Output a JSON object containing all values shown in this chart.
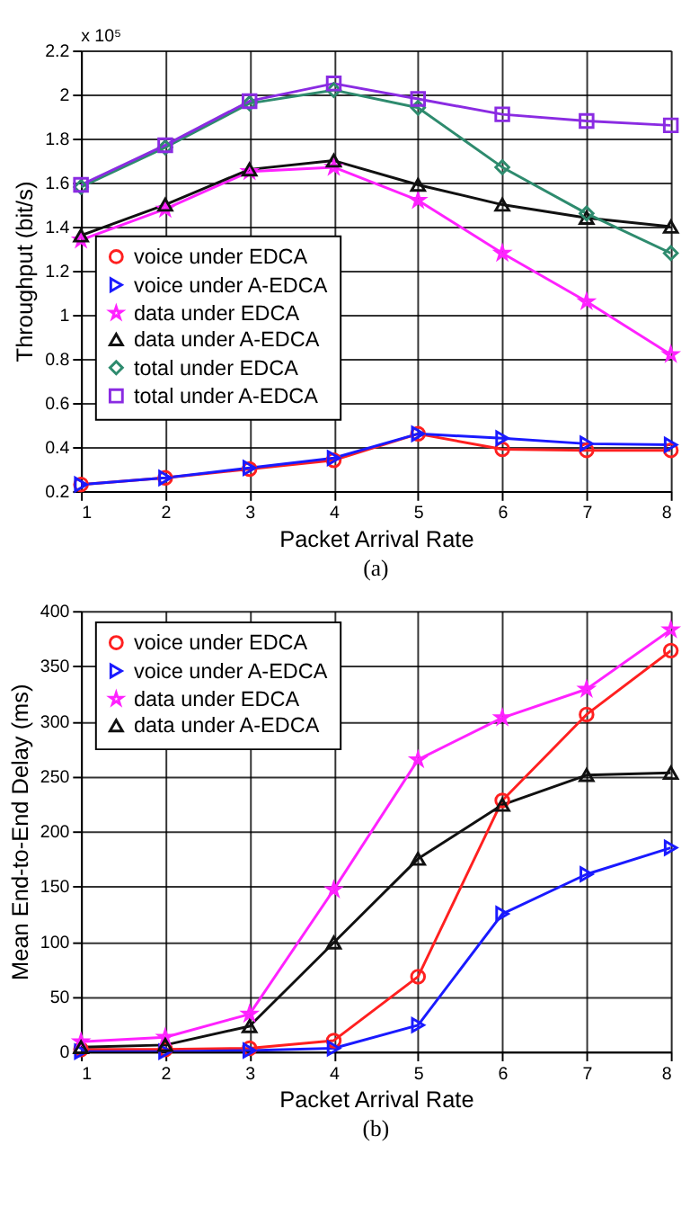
{
  "chart_data": [
    {
      "type": "line",
      "title": "(a)",
      "xlabel": "Packet Arrival Rate",
      "ylabel": "Throughput (bit/s)",
      "annotations": [
        "x 10⁵"
      ],
      "x": [
        1,
        2,
        3,
        4,
        5,
        6,
        7,
        8
      ],
      "xlim": [
        1,
        8
      ],
      "xticks": [
        1,
        2,
        3,
        4,
        5,
        6,
        7,
        8
      ],
      "ylim": [
        0.2,
        2.2
      ],
      "yticks": [
        0.2,
        0.4,
        0.6,
        0.8,
        1,
        1.2,
        1.4,
        1.6,
        1.8,
        2,
        2.2
      ],
      "grid": true,
      "legend": "left",
      "line_style": "solid",
      "series": [
        {
          "name": "voice under EDCA",
          "color": "#ff2020",
          "marker": "circle",
          "values": [
            0.23,
            0.26,
            0.3,
            0.34,
            0.46,
            0.39,
            0.385,
            0.385
          ]
        },
        {
          "name": "voice under A-EDCA",
          "color": "#1a1aff",
          "marker": "triangle-right",
          "values": [
            0.23,
            0.26,
            0.305,
            0.35,
            0.46,
            0.44,
            0.415,
            0.41
          ]
        },
        {
          "name": "data under EDCA",
          "color": "#ff22ff",
          "marker": "star",
          "values": [
            1.34,
            1.48,
            1.65,
            1.67,
            1.52,
            1.28,
            1.06,
            0.82
          ]
        },
        {
          "name": "data under A-EDCA",
          "color": "#111111",
          "marker": "triangle-up",
          "values": [
            1.36,
            1.5,
            1.66,
            1.7,
            1.59,
            1.5,
            1.44,
            1.4
          ]
        },
        {
          "name": "total under EDCA",
          "color": "#2e8b6e",
          "marker": "diamond",
          "values": [
            1.58,
            1.76,
            1.96,
            2.02,
            1.94,
            1.67,
            1.46,
            1.28
          ]
        },
        {
          "name": "total under A-EDCA",
          "color": "#8a2be2",
          "marker": "square",
          "values": [
            1.59,
            1.77,
            1.97,
            2.05,
            1.98,
            1.91,
            1.88,
            1.86
          ]
        }
      ]
    },
    {
      "type": "line",
      "title": "(b)",
      "xlabel": "Packet Arrival Rate",
      "ylabel": "Mean End-to-End Delay (ms)",
      "x": [
        1,
        2,
        3,
        4,
        5,
        6,
        7,
        8
      ],
      "xlim": [
        1,
        8
      ],
      "xticks": [
        1,
        2,
        3,
        4,
        5,
        6,
        7,
        8
      ],
      "ylim": [
        0,
        400
      ],
      "yticks": [
        0,
        50,
        100,
        150,
        200,
        250,
        300,
        350,
        400
      ],
      "grid": true,
      "legend": "top left",
      "line_style": "solid",
      "series": [
        {
          "name": "voice under EDCA",
          "color": "#ff2020",
          "marker": "circle",
          "values": [
            2,
            2,
            3,
            10,
            68,
            228,
            306,
            364
          ]
        },
        {
          "name": "voice under A-EDCA",
          "color": "#1a1aff",
          "marker": "triangle-right",
          "values": [
            0,
            0,
            1,
            3,
            24,
            125,
            161,
            185
          ]
        },
        {
          "name": "data under EDCA",
          "color": "#ff22ff",
          "marker": "star",
          "values": [
            9,
            13,
            34,
            147,
            265,
            303,
            329,
            383
          ]
        },
        {
          "name": "data under A-EDCA",
          "color": "#111111",
          "marker": "triangle-up",
          "values": [
            4,
            6,
            23,
            99,
            175,
            224,
            251,
            253
          ]
        }
      ]
    }
  ]
}
